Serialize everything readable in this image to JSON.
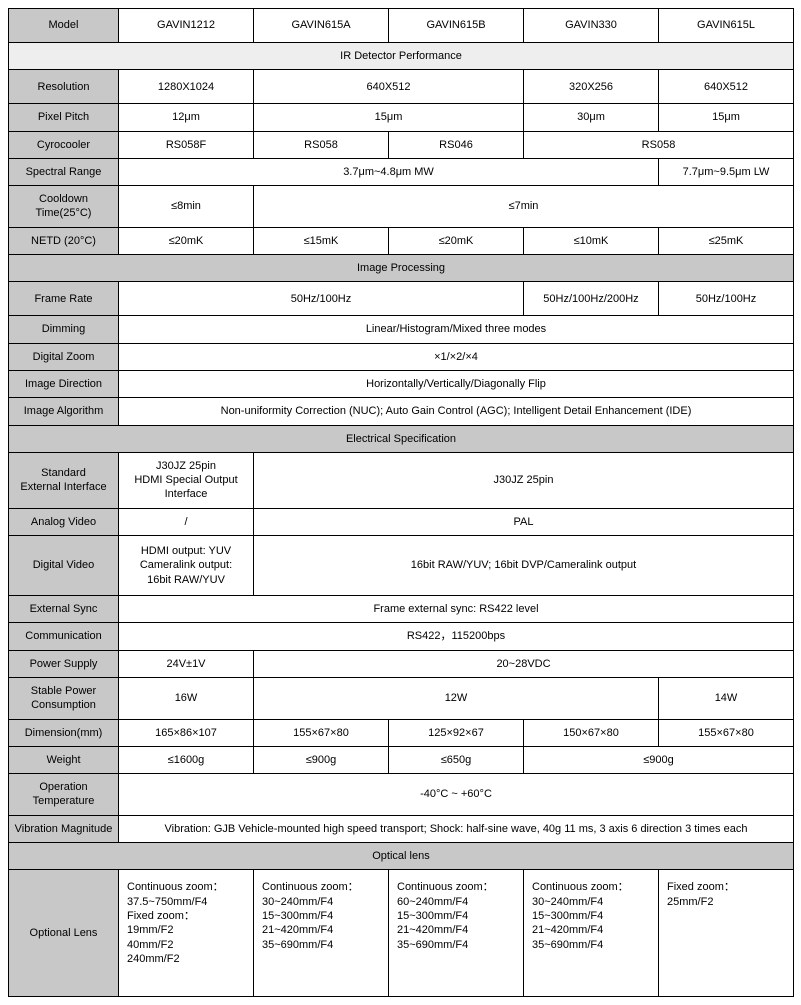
{
  "header": {
    "model_label": "Model",
    "models": [
      "GAVIN1212",
      "GAVIN615A",
      "GAVIN615B",
      "GAVIN330",
      "GAVIN615L"
    ]
  },
  "sections": {
    "ir": "IR Detector Performance",
    "img": "Image Processing",
    "elec": "Electrical Specification",
    "opt": "Optical lens"
  },
  "rows": {
    "resolution": {
      "label": "Resolution",
      "v0": "1280X1024",
      "v12": "640X512",
      "v3": "320X256",
      "v4": "640X512"
    },
    "pixelpitch": {
      "label": "Pixel Pitch",
      "v0": "12μm",
      "v12": "15μm",
      "v3": "30μm",
      "v4": "15μm"
    },
    "cyro": {
      "label": "Cyrocooler",
      "v0": "RS058F",
      "v1": "RS058",
      "v2": "RS046",
      "v34": "RS058"
    },
    "spectral": {
      "label": "Spectral Range",
      "v0123": "3.7μm~4.8μm MW",
      "v4": "7.7μm~9.5μm LW"
    },
    "cooldown": {
      "label": "Cooldown\nTime(25°C)",
      "v0": "≤8min",
      "v1234": "≤7min"
    },
    "netd": {
      "label": "NETD (20°C)",
      "v0": "≤20mK",
      "v1": "≤15mK",
      "v2": "≤20mK",
      "v3": "≤10mK",
      "v4": "≤25mK"
    },
    "framerate": {
      "label": "Frame Rate",
      "v012": "50Hz/100Hz",
      "v3": "50Hz/100Hz/200Hz",
      "v4": "50Hz/100Hz"
    },
    "dimming": {
      "label": "Dimming",
      "all": "Linear/Histogram/Mixed three modes"
    },
    "dzoom": {
      "label": "Digital Zoom",
      "all": "×1/×2/×4"
    },
    "imgdir": {
      "label": "Image Direction",
      "all": "Horizontally/Vertically/Diagonally Flip"
    },
    "imgalg": {
      "label": "Image Algorithm",
      "all": "Non-uniformity Correction (NUC); Auto Gain Control (AGC); Intelligent Detail Enhancement (IDE)"
    },
    "stdext": {
      "label": "Standard\nExternal Interface",
      "v0": "J30JZ 25pin\nHDMI Special Output Interface",
      "v1234": "J30JZ 25pin"
    },
    "analog": {
      "label": "Analog Video",
      "v0": "/",
      "v1234": "PAL"
    },
    "digvid": {
      "label": "Digital Video",
      "v0": "HDMI output: YUV\nCameralink output:\n16bit RAW/YUV",
      "v1234": "16bit RAW/YUV; 16bit DVP/Cameralink output"
    },
    "extsync": {
      "label": "External Sync",
      "all": "Frame external sync: RS422 level"
    },
    "comm": {
      "label": "Communication",
      "all": "RS422，115200bps"
    },
    "power": {
      "label": "Power Supply",
      "v0": "24V±1V",
      "v1234": "20~28VDC"
    },
    "stablepw": {
      "label": "Stable Power\nConsumption",
      "v0": "16W",
      "v123": "12W",
      "v4": "14W"
    },
    "dim": {
      "label": "Dimension(mm)",
      "v0": "165×86×107",
      "v1": "155×67×80",
      "v2": "125×92×67",
      "v3": "150×67×80",
      "v4": "155×67×80"
    },
    "weight": {
      "label": "Weight",
      "v0": "≤1600g",
      "v1": "≤900g",
      "v2": "≤650g",
      "v34": "≤900g"
    },
    "optemp": {
      "label": "Operation\nTemperature",
      "all": "-40°C ~ +60°C"
    },
    "vib": {
      "label": "Vibration Magnitude",
      "all": "Vibration: GJB Vehicle-mounted high speed transport; Shock: half-sine wave, 40g 11 ms, 3 axis 6 direction 3 times each"
    },
    "lens": {
      "label": "Optional Lens",
      "v0": "Continuous zoom：\n37.5~750mm/F4\nFixed zoom：\n19mm/F2\n40mm/F2\n240mm/F2",
      "v1": "Continuous zoom：\n30~240mm/F4\n15~300mm/F4\n21~420mm/F4\n35~690mm/F4",
      "v2": "Continuous zoom：\n60~240mm/F4\n15~300mm/F4\n21~420mm/F4\n35~690mm/F4",
      "v3": "Continuous zoom：\n30~240mm/F4\n15~300mm/F4\n21~420mm/F4\n35~690mm/F4",
      "v4": "Fixed zoom：\n25mm/F2"
    }
  },
  "colors": {
    "rowhead_bg": "#c8c8c8",
    "section_bg": "#c8c8c8",
    "light_bg": "#eeeeee",
    "white_bg": "#ffffff",
    "border": "#000000"
  }
}
